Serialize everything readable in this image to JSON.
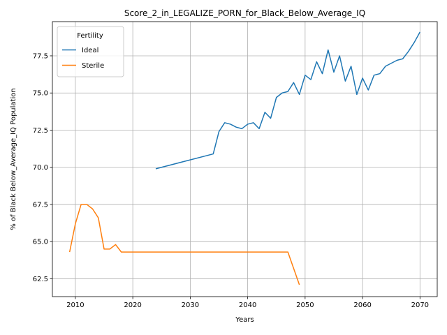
{
  "chart_data": {
    "type": "line",
    "title": "Score_2_in_LEGALIZE_PORN_for_Black_Below_Average_IQ",
    "xlabel": "Years",
    "ylabel": "% of Black Below_Average_IQ Population",
    "xlim": [
      2006,
      2073
    ],
    "ylim": [
      61.3,
      79.8
    ],
    "x_ticks": [
      2010,
      2020,
      2030,
      2040,
      2050,
      2060,
      2070
    ],
    "y_ticks": [
      62.5,
      65.0,
      67.5,
      70.0,
      72.5,
      75.0,
      77.5
    ],
    "y_tick_labels": [
      "62.5",
      "65.0",
      "67.5",
      "70.0",
      "72.5",
      "75.0",
      "77.5"
    ],
    "grid": true,
    "legend": {
      "title": "Fertility",
      "placement": "top-left"
    },
    "series": [
      {
        "name": "Ideal",
        "color": "#1f77b4",
        "x": [
          2024,
          2034,
          2035,
          2036,
          2037,
          2038,
          2039,
          2040,
          2041,
          2042,
          2043,
          2044,
          2045,
          2046,
          2047,
          2048,
          2049,
          2050,
          2051,
          2052,
          2053,
          2054,
          2055,
          2056,
          2057,
          2058,
          2059,
          2060,
          2061,
          2062,
          2063,
          2064,
          2065,
          2066,
          2067,
          2068,
          2069,
          2070
        ],
        "y": [
          69.9,
          70.9,
          72.4,
          73.0,
          72.9,
          72.7,
          72.6,
          72.9,
          73.0,
          72.6,
          73.7,
          73.3,
          74.7,
          75.0,
          75.1,
          75.7,
          74.9,
          76.2,
          75.9,
          77.1,
          76.3,
          77.9,
          76.4,
          77.5,
          75.8,
          76.8,
          74.9,
          76.0,
          75.2,
          76.2,
          76.3,
          76.8,
          77.0,
          77.2,
          77.3,
          77.8,
          78.4,
          79.1
        ]
      },
      {
        "name": "Sterile",
        "color": "#ff7f0e",
        "x": [
          2009,
          2010,
          2011,
          2012,
          2013,
          2014,
          2015,
          2016,
          2017,
          2018,
          2019,
          2020,
          2025,
          2030,
          2035,
          2040,
          2045,
          2046,
          2047,
          2048,
          2049
        ],
        "y": [
          64.3,
          66.2,
          67.5,
          67.5,
          67.2,
          66.6,
          64.5,
          64.5,
          64.8,
          64.3,
          64.3,
          64.3,
          64.3,
          64.3,
          64.3,
          64.3,
          64.3,
          64.3,
          64.3,
          63.2,
          62.1
        ]
      }
    ]
  }
}
